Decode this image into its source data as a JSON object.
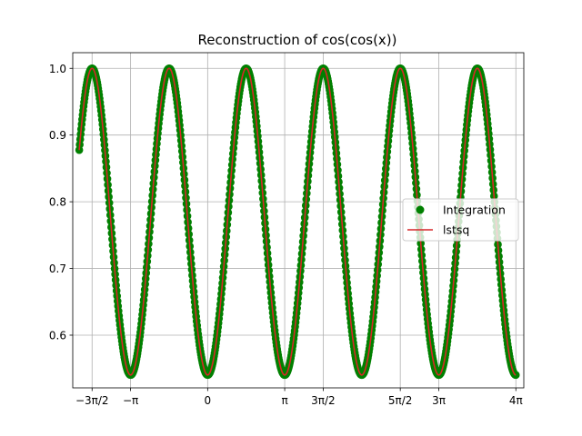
{
  "chart_data": {
    "type": "line",
    "title": "Reconstruction of cos(cos(x))",
    "xlabel": "",
    "ylabel": "",
    "function": "cos(cos(x))",
    "x_range": [
      -5.236,
      12.566
    ],
    "xlim": [
      -5.5,
      12.89
    ],
    "ylim": [
      0.521,
      1.0235
    ],
    "grid": true,
    "legend_position": "center-right",
    "x_ticks": [
      {
        "value": -4.712,
        "label": "−3π/2"
      },
      {
        "value": -3.1416,
        "label": "−π"
      },
      {
        "value": 0,
        "label": "0"
      },
      {
        "value": 3.1416,
        "label": "π"
      },
      {
        "value": 4.712,
        "label": "3π/2"
      },
      {
        "value": 7.854,
        "label": "5π/2"
      },
      {
        "value": 9.4248,
        "label": "3π"
      },
      {
        "value": 12.566,
        "label": "4π"
      }
    ],
    "y_ticks": [
      {
        "value": 0.6,
        "label": "0.6"
      },
      {
        "value": 0.7,
        "label": "0.7"
      },
      {
        "value": 0.8,
        "label": "0.8"
      },
      {
        "value": 0.9,
        "label": "0.9"
      },
      {
        "value": 1.0,
        "label": "1.0"
      }
    ],
    "series": [
      {
        "name": "Integration",
        "style": "markers",
        "color": "#008000"
      },
      {
        "name": "lstsq",
        "style": "line",
        "color": "#d62728"
      }
    ]
  }
}
